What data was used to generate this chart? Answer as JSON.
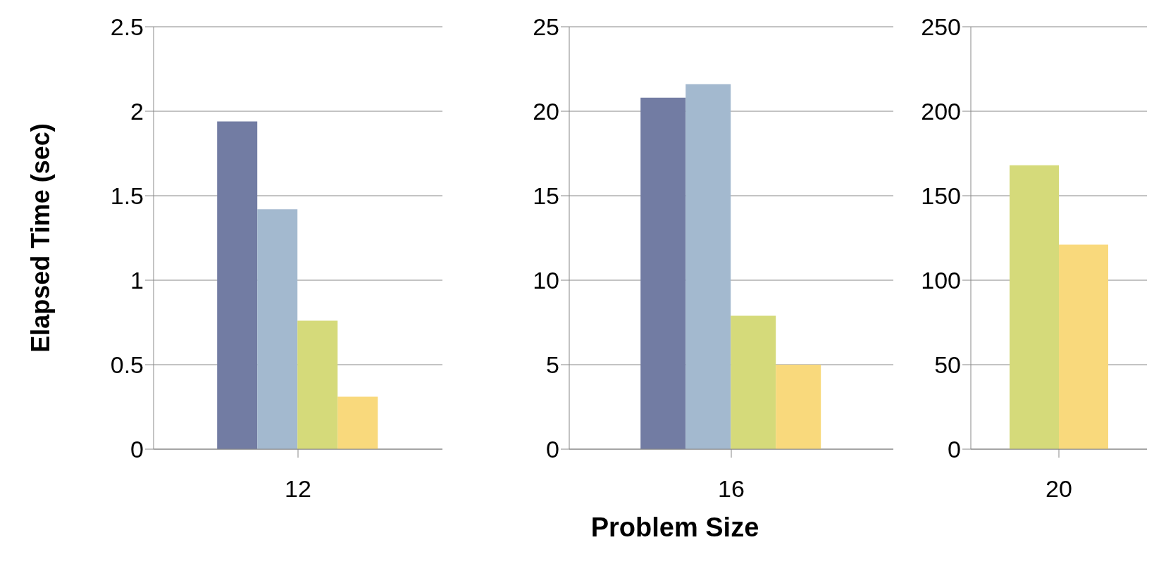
{
  "chart_data": [
    {
      "type": "bar",
      "ylabel": "Elapsed Time (sec)",
      "categories": [
        "12"
      ],
      "ylim": [
        0,
        2.5
      ],
      "yticks": [
        0,
        0.5,
        1,
        1.5,
        2,
        2.5
      ],
      "grid": "y",
      "series": [
        {
          "color": "#727ca3",
          "values": [
            1.94
          ]
        },
        {
          "color": "#a3b9cf",
          "values": [
            1.42
          ]
        },
        {
          "color": "#d5da7a",
          "values": [
            0.76
          ]
        },
        {
          "color": "#f9d97c",
          "values": [
            0.31
          ]
        }
      ]
    },
    {
      "type": "bar",
      "xlabel": "Problem Size",
      "categories": [
        "16"
      ],
      "ylim": [
        0,
        25
      ],
      "yticks": [
        0,
        5,
        10,
        15,
        20,
        25
      ],
      "grid": "y",
      "series": [
        {
          "color": "#727ca3",
          "values": [
            20.8
          ]
        },
        {
          "color": "#a3b9cf",
          "values": [
            21.6
          ]
        },
        {
          "color": "#d5da7a",
          "values": [
            7.9
          ]
        },
        {
          "color": "#f9d97c",
          "values": [
            5
          ]
        }
      ]
    },
    {
      "type": "bar",
      "categories": [
        "20"
      ],
      "ylim": [
        0,
        250
      ],
      "yticks": [
        0,
        50,
        100,
        150,
        200,
        250
      ],
      "grid": "y",
      "series": [
        {
          "color": "#d5da7a",
          "values": [
            168
          ]
        },
        {
          "color": "#f9d97c",
          "values": [
            121
          ]
        }
      ]
    }
  ]
}
